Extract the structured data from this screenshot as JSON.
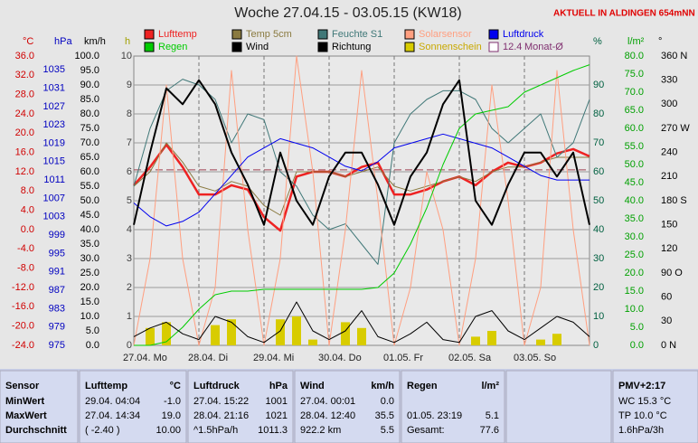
{
  "chart_data": {
    "type": "line",
    "title": "Woche 27.04.15 - 03.05.15 (KW18)",
    "subtitle": "AKTUELL IN ALDINGEN 654mNN",
    "x_labels": [
      "27.04. Mo",
      "28.04. Di",
      "29.04. Mi",
      "30.04. Do",
      "01.05. Fr",
      "02.05. Sa",
      "03.05. So"
    ],
    "x": [
      "27.04. 00:00",
      "27.04. 06:00",
      "27.04. 12:00",
      "27.04. 18:00",
      "28.04. 00:00",
      "28.04. 06:00",
      "28.04. 12:00",
      "28.04. 18:00",
      "29.04. 00:00",
      "29.04. 06:00",
      "29.04. 12:00",
      "29.04. 18:00",
      "30.04. 00:00",
      "30.04. 06:00",
      "30.04. 12:00",
      "30.04. 18:00",
      "01.05. 00:00",
      "01.05. 06:00",
      "01.05. 12:00",
      "01.05. 18:00",
      "02.05. 00:00",
      "02.05. 06:00",
      "02.05. 12:00",
      "02.05. 18:00",
      "03.05. 00:00",
      "03.05. 06:00",
      "03.05. 12:00",
      "03.05. 18:00",
      "04.05. 00:00"
    ],
    "axes": [
      {
        "unit": "°C",
        "color": "#d00000",
        "lim": [
          -24,
          36
        ],
        "ticks": [
          {
            "value": 36,
            "label": "36.0"
          },
          {
            "value": 32,
            "label": "32.0"
          },
          {
            "value": 28,
            "label": "28.0"
          },
          {
            "value": 24,
            "label": "24.0"
          },
          {
            "value": 20,
            "label": "20.0"
          },
          {
            "value": 16,
            "label": "16.0"
          },
          {
            "value": 12,
            "label": "12.0"
          },
          {
            "value": 8,
            "label": "8.0"
          },
          {
            "value": 4,
            "label": "4.0"
          },
          {
            "value": 0,
            "label": "0.0"
          },
          {
            "value": -4,
            "label": "-4.0"
          },
          {
            "value": -8,
            "label": "-8.0"
          },
          {
            "value": -12,
            "label": "-12.0"
          },
          {
            "value": -16,
            "label": "-16.0"
          },
          {
            "value": -20,
            "label": "-20.0"
          },
          {
            "value": -24,
            "label": "-24.0"
          }
        ]
      },
      {
        "unit": "hPa",
        "color": "#0000c0",
        "lim": [
          975,
          1038
        ],
        "ticks": [
          1035,
          1031,
          1027,
          1023,
          1019,
          1015,
          1011,
          1007,
          1003,
          999,
          995,
          991,
          987,
          983,
          979,
          975
        ]
      },
      {
        "unit": "km/h",
        "color": "#000000",
        "lim": [
          0,
          100
        ],
        "ticks": [
          {
            "value": 100,
            "label": "100.0"
          },
          {
            "value": 95,
            "label": "95.0"
          },
          {
            "value": 90,
            "label": "90.0"
          },
          {
            "value": 85,
            "label": "85.0"
          },
          {
            "value": 80,
            "label": "80.0"
          },
          {
            "value": 75,
            "label": "75.0"
          },
          {
            "value": 70,
            "label": "70.0"
          },
          {
            "value": 65,
            "label": "65.0"
          },
          {
            "value": 60,
            "label": "60.0"
          },
          {
            "value": 55,
            "label": "55.0"
          },
          {
            "value": 50,
            "label": "50.0"
          },
          {
            "value": 45,
            "label": "45.0"
          },
          {
            "value": 40,
            "label": "40.0"
          },
          {
            "value": 35,
            "label": "35.0"
          },
          {
            "value": 30,
            "label": "30.0"
          },
          {
            "value": 25,
            "label": "25.0"
          },
          {
            "value": 20,
            "label": "20.0"
          },
          {
            "value": 15,
            "label": "15.0"
          },
          {
            "value": 10,
            "label": "10.0"
          },
          {
            "value": 5,
            "label": "5.0"
          },
          {
            "value": 0,
            "label": "0.0"
          }
        ]
      },
      {
        "unit": "h",
        "color": "#404040",
        "lim": [
          0,
          10
        ],
        "ticks": [
          10,
          9,
          8,
          7,
          6,
          5,
          4,
          3,
          2,
          1,
          0
        ]
      },
      {
        "unit": "%",
        "color": "#006040",
        "lim": [
          0,
          100
        ],
        "ticks": [
          90,
          80,
          70,
          60,
          50,
          40,
          30,
          20,
          10,
          0
        ]
      },
      {
        "unit": "l/m²",
        "color": "#00a000",
        "lim": [
          0,
          80
        ],
        "ticks": [
          {
            "value": 80,
            "label": "80.0"
          },
          {
            "value": 75,
            "label": "75.0"
          },
          {
            "value": 70,
            "label": "70.0"
          },
          {
            "value": 65,
            "label": "65.0"
          },
          {
            "value": 60,
            "label": "60.0"
          },
          {
            "value": 55,
            "label": "55.0"
          },
          {
            "value": 50,
            "label": "50.0"
          },
          {
            "value": 45,
            "label": "45.0"
          },
          {
            "value": 40,
            "label": "40.0"
          },
          {
            "value": 35,
            "label": "35.0"
          },
          {
            "value": 30,
            "label": "30.0"
          },
          {
            "value": 25,
            "label": "25.0"
          },
          {
            "value": 20,
            "label": "20.0"
          },
          {
            "value": 15,
            "label": "15.0"
          },
          {
            "value": 10,
            "label": "10.0"
          },
          {
            "value": 5,
            "label": "5.0"
          },
          {
            "value": 0,
            "label": "0.0"
          }
        ]
      },
      {
        "unit": "°",
        "color": "#000000",
        "lim": [
          0,
          360
        ],
        "ticks": [
          {
            "value": 360,
            "label": "360 N"
          },
          330,
          300,
          {
            "value": 270,
            "label": "270 W"
          },
          240,
          210,
          {
            "value": 180,
            "label": "180 S"
          },
          150,
          120,
          {
            "value": 90,
            "label": "90 O"
          },
          60,
          30,
          {
            "value": 0,
            "label": "0 N"
          }
        ]
      }
    ],
    "grid": true,
    "series": [
      {
        "name": "Lufttemp",
        "color": "#ee2222",
        "axis": "°C",
        "style": "line",
        "line_width": 2.5,
        "values": [
          9.2,
          13,
          17.6,
          13,
          7.3,
          7.3,
          9.2,
          8.3,
          2.6,
          -0.2,
          11,
          12,
          12,
          11,
          13,
          13.9,
          7.3,
          7.3,
          8.3,
          10,
          11,
          9.2,
          12,
          13.9,
          13,
          13.9,
          15.8,
          16.7,
          15.2
        ]
      },
      {
        "name": "Temp 5cm",
        "color": "#8a7a40",
        "axis": "°C",
        "style": "line",
        "line_width": 1,
        "values": [
          9,
          12,
          18,
          14,
          9,
          8,
          10,
          9,
          5,
          3,
          12,
          12,
          12,
          11,
          12,
          13,
          9,
          8,
          9,
          10,
          11,
          10,
          12,
          13,
          13,
          14,
          15,
          15,
          15
        ]
      },
      {
        "name": "Feuchte S1",
        "color": "#407878",
        "axis": "%",
        "style": "line",
        "line_width": 1,
        "values": [
          55,
          75,
          88,
          92,
          90,
          85,
          70,
          80,
          78,
          60,
          55,
          45,
          40,
          42,
          35,
          28,
          70,
          80,
          85,
          88,
          88,
          85,
          75,
          70,
          75,
          80,
          65,
          70,
          85
        ]
      },
      {
        "name": "Solarsensor",
        "color": "#ff9f80",
        "axis": "%",
        "style": "line",
        "line_width": 1,
        "values": [
          0,
          30,
          90,
          30,
          0,
          20,
          95,
          40,
          0,
          30,
          100,
          60,
          0,
          40,
          95,
          50,
          0,
          20,
          60,
          40,
          0,
          30,
          90,
          50,
          0,
          20,
          95,
          40,
          0
        ]
      },
      {
        "name": "Luftdruck",
        "color": "#0000ee",
        "axis": "hPa",
        "style": "line",
        "line_width": 1,
        "values": [
          1006,
          1003,
          1001,
          1002,
          1004,
          1008,
          1012,
          1016,
          1018,
          1020,
          1019,
          1018,
          1016,
          1014,
          1013,
          1015,
          1018,
          1019,
          1020,
          1021,
          1020,
          1019,
          1018,
          1016,
          1014,
          1012,
          1011,
          1011,
          1011
        ]
      },
      {
        "name": "Regen",
        "color": "#00cc00",
        "axis": "l/m²",
        "style": "line",
        "line_width": 1,
        "values": [
          0,
          0,
          1,
          5,
          10,
          14,
          15,
          15,
          15.5,
          15.5,
          15.5,
          15.5,
          15.5,
          15.5,
          15.5,
          16,
          20,
          28,
          38,
          50,
          60,
          64,
          65,
          66,
          70,
          72,
          74,
          76,
          77.6
        ]
      },
      {
        "name": "Wind",
        "color": "#000000",
        "axis": "km/h",
        "style": "line",
        "line_width": 1,
        "values": [
          3,
          6,
          8,
          4,
          2,
          10,
          8,
          3,
          1,
          5,
          15,
          5,
          2,
          5,
          12,
          3,
          1,
          4,
          8,
          2,
          1,
          10,
          12,
          5,
          2,
          6,
          10,
          8,
          3
        ]
      },
      {
        "name": "Richtung",
        "color": "#000000",
        "axis": "°",
        "style": "line",
        "line_width": 2,
        "values": [
          150,
          240,
          320,
          300,
          330,
          300,
          240,
          200,
          150,
          240,
          180,
          150,
          210,
          240,
          240,
          200,
          150,
          210,
          240,
          300,
          330,
          180,
          150,
          200,
          240,
          240,
          210,
          240,
          150
        ]
      },
      {
        "name": "Sonnenschein",
        "color": "#d8cc00",
        "axis": "h",
        "style": "bar",
        "values": [
          0,
          0.6,
          0.8,
          0,
          0,
          0.7,
          0.9,
          0,
          0,
          0.9,
          1.0,
          0.2,
          0,
          0.8,
          0.6,
          0,
          0,
          0,
          0,
          0,
          0,
          0.3,
          0.5,
          0,
          0,
          0.2,
          0.4,
          0,
          0
        ]
      }
    ],
    "monthly_mean": {
      "name": "Monat-Ø",
      "value": 12.4,
      "axis": "°C",
      "color": "#803070"
    }
  },
  "table": {
    "columns": [
      {
        "header": "Sensor",
        "rows": [
          [
            "MinWert"
          ],
          [
            "MaxWert"
          ],
          [
            "Durchschnitt"
          ]
        ]
      },
      {
        "header": "Lufttemp",
        "unit": "°C",
        "rows": [
          [
            "29.04. 04:04",
            "-1.0"
          ],
          [
            "27.04. 14:34",
            "19.0"
          ],
          [
            "( -2.40 )",
            "10.00"
          ]
        ]
      },
      {
        "header": "Luftdruck",
        "unit": "hPa",
        "rows": [
          [
            "27.04. 15:22",
            "1001"
          ],
          [
            "28.04. 21:16",
            "1021"
          ],
          [
            "^1.5hPa/h",
            "1011.3"
          ]
        ]
      },
      {
        "header": "Wind",
        "unit": "km/h",
        "rows": [
          [
            "27.04. 00:01",
            "0.0"
          ],
          [
            "28.04. 12:40",
            "35.5"
          ],
          [
            "922.2 km",
            "5.5"
          ]
        ]
      },
      {
        "header": "Regen",
        "unit": "l/m²",
        "rows": [
          [
            "01.05. 23:19",
            "5.1"
          ],
          [
            "Gesamt:",
            "77.6"
          ]
        ]
      },
      {
        "header": "PMV+2:17",
        "rows": [
          [
            "WC 15.3 °C"
          ],
          [
            "TP 10.0 °C"
          ],
          [
            "1.6hPa/3h"
          ]
        ]
      }
    ]
  }
}
